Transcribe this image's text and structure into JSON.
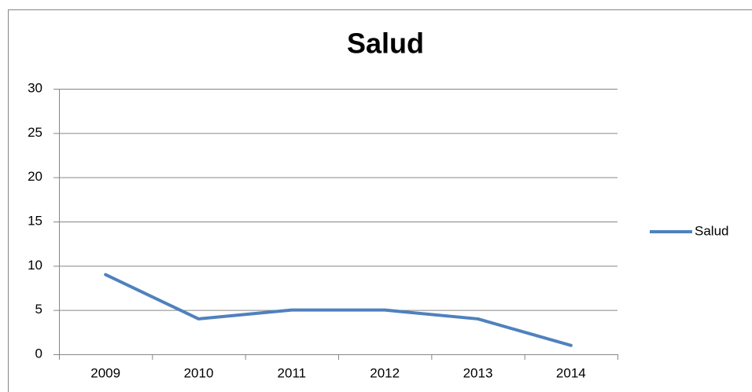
{
  "chart_data": {
    "type": "line",
    "title": "Salud",
    "categories": [
      "2009",
      "2010",
      "2011",
      "2012",
      "2013",
      "2014"
    ],
    "series": [
      {
        "name": "Salud",
        "color": "#4f81bd",
        "values": [
          9,
          4,
          5,
          5,
          4,
          1
        ]
      }
    ],
    "ylim": [
      0,
      30
    ],
    "yticks": [
      0,
      5,
      10,
      15,
      20,
      25,
      30
    ],
    "grid": true,
    "legend": "right"
  }
}
